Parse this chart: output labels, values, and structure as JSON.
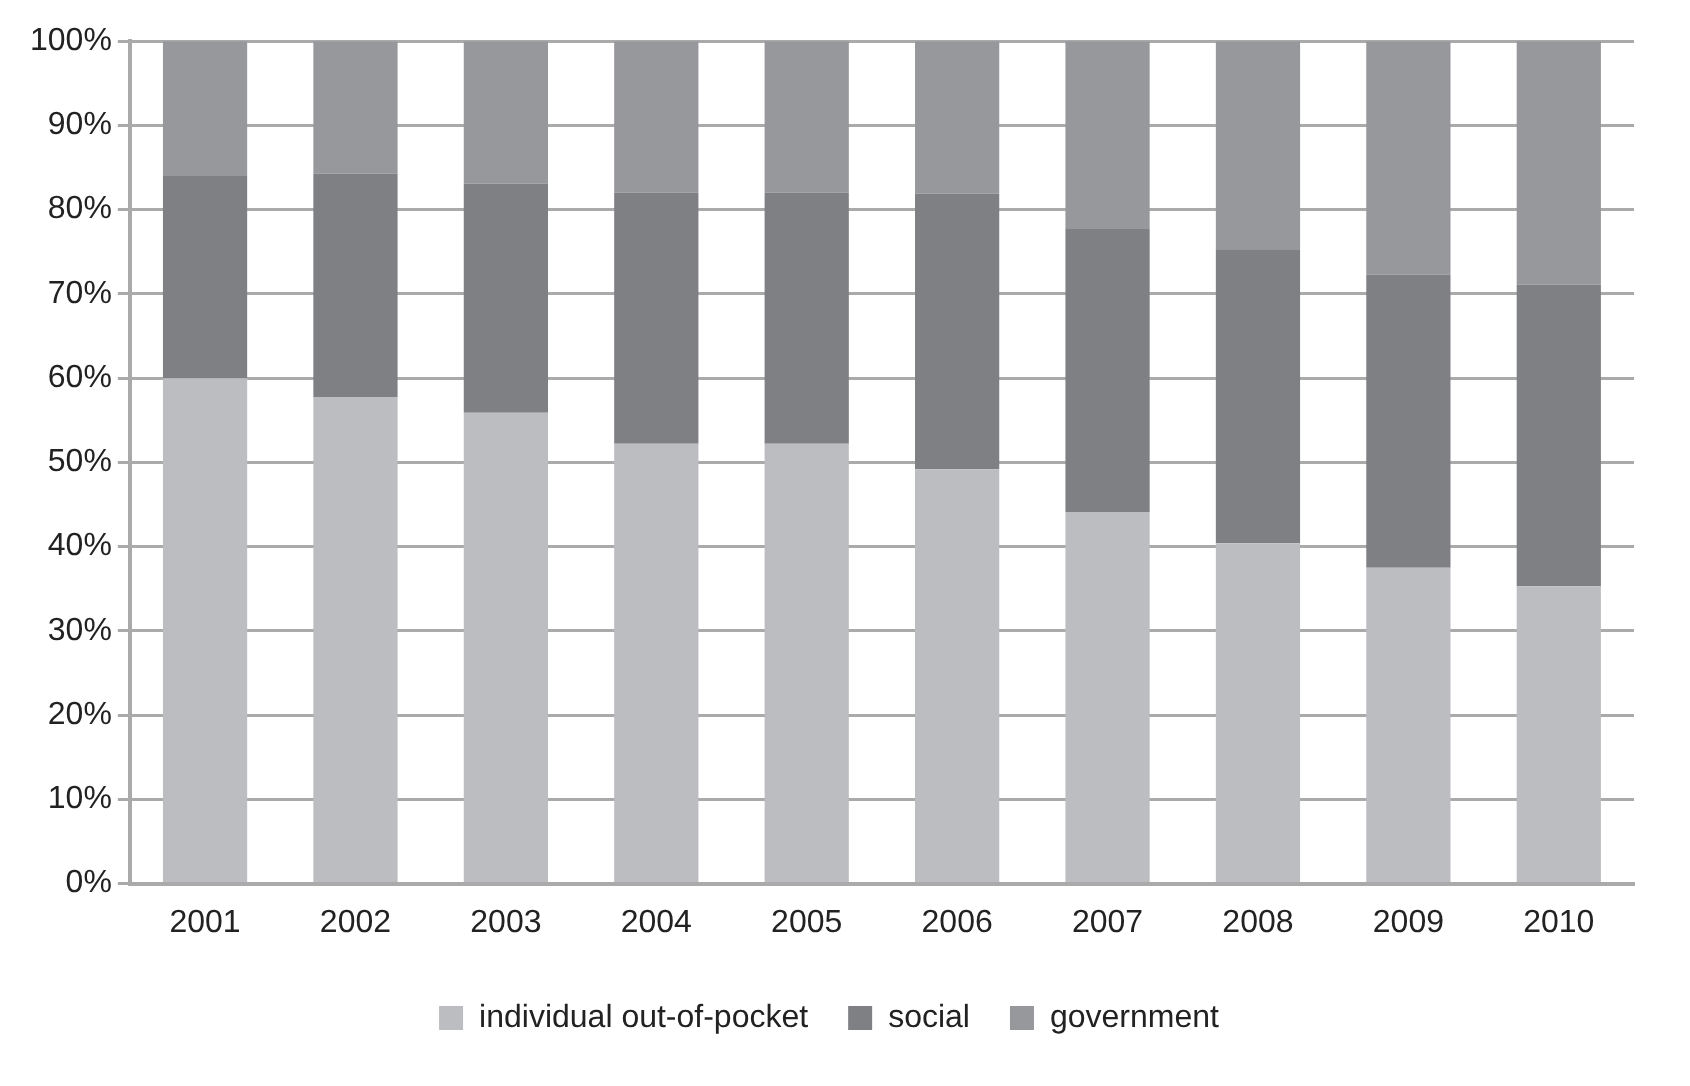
{
  "chart_data": {
    "type": "bar",
    "stacked": true,
    "categories": [
      "2001",
      "2002",
      "2003",
      "2004",
      "2005",
      "2006",
      "2007",
      "2008",
      "2009",
      "2010"
    ],
    "series": [
      {
        "name": "individual out-of-pocket",
        "color": "#bcbdc1",
        "values": [
          60.0,
          57.7,
          55.9,
          52.2,
          52.2,
          49.2,
          44.1,
          40.4,
          37.5,
          35.3
        ]
      },
      {
        "name": "social",
        "color": "#7f8084",
        "values": [
          24.0,
          26.6,
          27.2,
          29.8,
          29.8,
          32.7,
          33.6,
          34.8,
          34.8,
          35.8
        ]
      },
      {
        "name": "government",
        "color": "#97989c",
        "values": [
          16.0,
          15.7,
          16.9,
          18.0,
          18.0,
          18.1,
          22.3,
          24.8,
          27.7,
          28.9
        ]
      }
    ],
    "ylim": [
      0,
      100
    ],
    "yticks": [
      {
        "value": 0,
        "label": "0%"
      },
      {
        "value": 10,
        "label": "10%"
      },
      {
        "value": 20,
        "label": "20%"
      },
      {
        "value": 30,
        "label": "30%"
      },
      {
        "value": 40,
        "label": "40%"
      },
      {
        "value": 50,
        "label": "50%"
      },
      {
        "value": 60,
        "label": "60%"
      },
      {
        "value": 70,
        "label": "70%"
      },
      {
        "value": 80,
        "label": "80%"
      },
      {
        "value": 90,
        "label": "90%"
      },
      {
        "value": 100,
        "label": "100%"
      }
    ],
    "grid": "y",
    "legend": "bottom"
  }
}
